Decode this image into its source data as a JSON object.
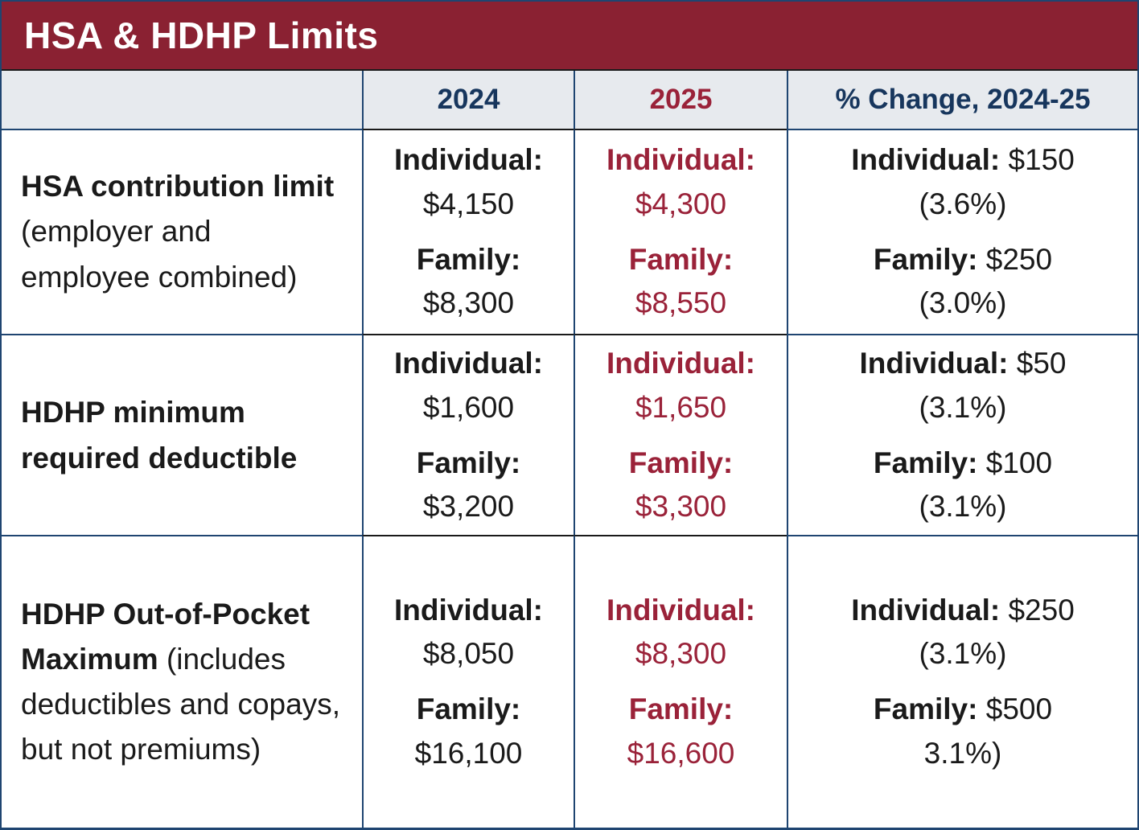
{
  "title": "HSA & HDHP Limits",
  "header": {
    "year_2024": "2024",
    "year_2025": "2025",
    "change": "% Change, 2024-25"
  },
  "labels": {
    "individual": "Individual:",
    "family": "Family:"
  },
  "rows": [
    {
      "name_bold": "HSA contribution limit",
      "name_rest": "(employer and employee combined)",
      "v2024": {
        "individual": "$4,150",
        "family": "$8,300"
      },
      "v2025": {
        "individual": "$4,300",
        "family": "$8,550"
      },
      "change": {
        "individual_amount": "$150",
        "individual_pct": "(3.6%)",
        "family_amount": "$250",
        "family_pct": "(3.0%)"
      }
    },
    {
      "name_bold": "HDHP minimum required deductible",
      "name_rest": "",
      "v2024": {
        "individual": "$1,600",
        "family": "$3,200"
      },
      "v2025": {
        "individual": "$1,650",
        "family": "$3,300"
      },
      "change": {
        "individual_amount": "$50",
        "individual_pct": "(3.1%)",
        "family_amount": "$100",
        "family_pct": "(3.1%)"
      }
    },
    {
      "name_bold": "HDHP Out-of-Pocket Maximum",
      "name_rest": "(includes deductibles and copays, but not premiums)",
      "v2024": {
        "individual": "$8,050",
        "family": "$16,100"
      },
      "v2025": {
        "individual": "$8,300",
        "family": "$16,600"
      },
      "change": {
        "individual_amount": "$250",
        "individual_pct": "(3.1%)",
        "family_amount": "$500",
        "family_pct": "3.1%)"
      }
    }
  ],
  "colors": {
    "maroon_bar": "#8A2132",
    "maroon_text": "#9A2239",
    "navy_text": "#17365D",
    "navy_border": "#1F4571",
    "header_bg": "#E7EAEE",
    "black_text": "#1a1a1a",
    "white_text": "#ffffff"
  },
  "chart_data": {
    "type": "table",
    "title": "HSA & HDHP Limits",
    "columns": [
      "",
      "2024",
      "2025",
      "% Change, 2024-25"
    ],
    "rows": [
      {
        "label": "HSA contribution limit (employer and employee combined)",
        "2024": {
          "individual": 4150,
          "family": 8300
        },
        "2025": {
          "individual": 4300,
          "family": 8550
        },
        "change": {
          "individual_dollars": 150,
          "individual_percent": 3.6,
          "family_dollars": 250,
          "family_percent": 3.0
        }
      },
      {
        "label": "HDHP minimum required deductible",
        "2024": {
          "individual": 1600,
          "family": 3200
        },
        "2025": {
          "individual": 1650,
          "family": 3300
        },
        "change": {
          "individual_dollars": 50,
          "individual_percent": 3.1,
          "family_dollars": 100,
          "family_percent": 3.1
        }
      },
      {
        "label": "HDHP Out-of-Pocket Maximum (includes deductibles and copays, but not premiums)",
        "2024": {
          "individual": 8050,
          "family": 16100
        },
        "2025": {
          "individual": 8300,
          "family": 16600
        },
        "change": {
          "individual_dollars": 250,
          "individual_percent": 3.1,
          "family_dollars": 500,
          "family_percent": 3.1
        }
      }
    ]
  }
}
